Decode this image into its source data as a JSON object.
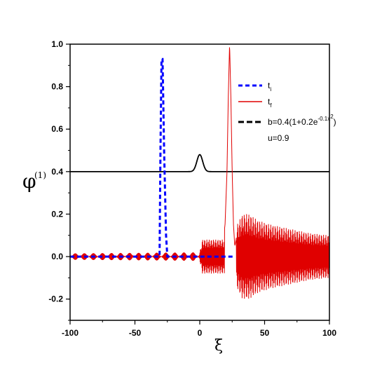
{
  "chart_data": {
    "type": "line",
    "xlabel": "ξ",
    "ylabel": "φ",
    "ylabel_sup": "(1)",
    "xlim": [
      -100,
      100
    ],
    "ylim": [
      -0.3,
      1.0
    ],
    "x_ticks": [
      -100,
      -50,
      0,
      50,
      100
    ],
    "x_tick_labels": [
      "-100",
      "-50",
      "0",
      "50",
      "100"
    ],
    "y_ticks": [
      -0.2,
      0.0,
      0.2,
      0.4,
      0.6,
      0.8,
      1.0
    ],
    "y_tick_labels": [
      "-0.2",
      "0.0",
      "0.2",
      "0.4",
      "0.6",
      "0.8",
      "1.0"
    ],
    "grid": false,
    "legend_position": "top-right",
    "series": [
      {
        "name": "t_i",
        "legend_base": "t",
        "legend_sub": "i",
        "style": "dashed",
        "color": "#0000ff",
        "points": [
          [
            -100,
            0.0
          ],
          [
            -35,
            0.0
          ],
          [
            -31,
            0.0
          ],
          [
            -30.3,
            0.5
          ],
          [
            -29.5,
            0.93
          ],
          [
            -28.7,
            0.93
          ],
          [
            -27.5,
            0.5
          ],
          [
            -26,
            0.1
          ],
          [
            -25,
            0.0
          ],
          [
            -20,
            0.0
          ],
          [
            20,
            0.0
          ],
          [
            27,
            0.0
          ]
        ]
      },
      {
        "name": "t_f",
        "legend_base": "t",
        "legend_sub": "f",
        "style": "solid",
        "color": "#e00000",
        "points": [
          [
            -100,
            0.01
          ],
          [
            -80,
            0.015
          ],
          [
            -60,
            0.01
          ],
          [
            -40,
            0.015
          ],
          [
            -20,
            0.01
          ],
          [
            -5,
            0.015
          ],
          [
            0,
            0.02
          ],
          [
            2,
            0.1
          ],
          [
            5,
            0.05
          ],
          [
            10,
            0.07
          ],
          [
            15,
            0.07
          ],
          [
            18,
            0.08
          ],
          [
            19.5,
            0.15
          ],
          [
            21,
            0.4
          ],
          [
            22,
            0.75
          ],
          [
            23,
            1.0
          ],
          [
            24,
            0.75
          ],
          [
            25,
            0.4
          ],
          [
            26,
            0.15
          ],
          [
            27,
            0.05
          ],
          [
            30,
            0.14
          ],
          [
            33,
            0.18
          ],
          [
            36,
            0.19
          ],
          [
            40,
            0.17
          ],
          [
            45,
            0.16
          ],
          [
            50,
            0.15
          ],
          [
            60,
            0.13
          ],
          [
            70,
            0.12
          ],
          [
            80,
            0.11
          ],
          [
            90,
            0.1
          ],
          [
            100,
            0.1
          ]
        ],
        "oscillation_amplitude_envelope": [
          [
            -100,
            0.015
          ],
          [
            0,
            0.02
          ],
          [
            2,
            0.08
          ],
          [
            10,
            0.08
          ],
          [
            20,
            0.08
          ],
          [
            28,
            0.14
          ],
          [
            33,
            0.2
          ],
          [
            38,
            0.2
          ],
          [
            45,
            0.17
          ],
          [
            55,
            0.15
          ],
          [
            70,
            0.13
          ],
          [
            85,
            0.11
          ],
          [
            100,
            0.1
          ]
        ]
      },
      {
        "name": "b=0.4(1+0.2e^{-0.1x^2})",
        "legend_text": "b=0.4(1+0.2e",
        "legend_sup": "-0.1x",
        "legend_sup2": "2",
        "legend_close": ")",
        "style": "solid",
        "color": "#000000",
        "function": "0.4*(1+0.2*exp(-0.1*x^2))"
      }
    ],
    "annotation": "u=0.9"
  }
}
